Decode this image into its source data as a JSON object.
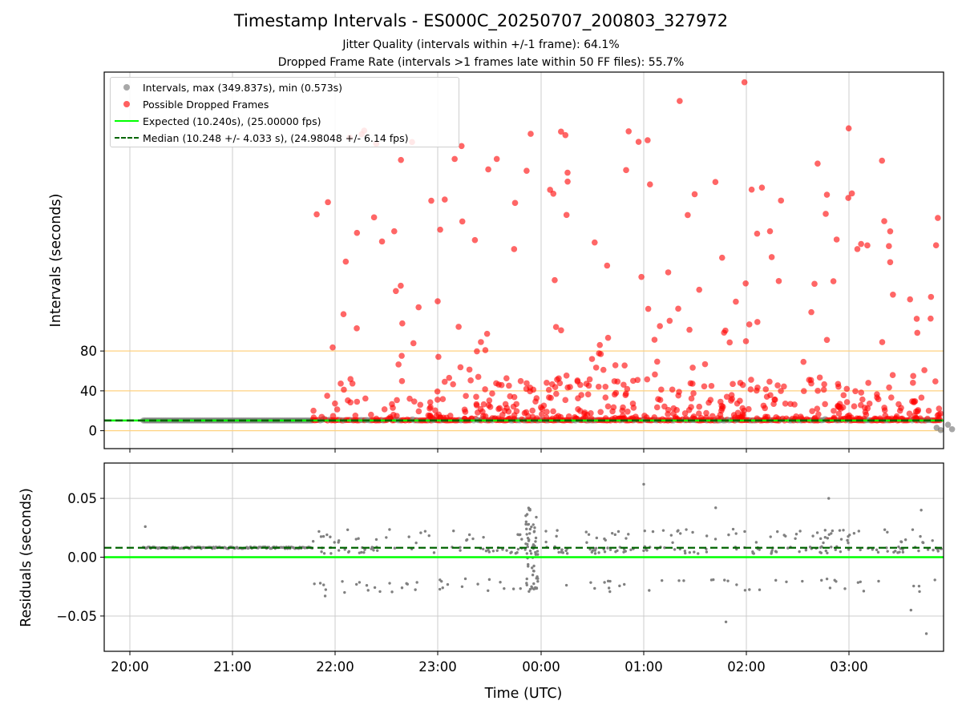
{
  "chart_data": {
    "type": "scatter",
    "title": "Timestamp Intervals - ES000C_20250707_200803_327972",
    "subtitle_1": "Jitter Quality (intervals within +/-1 frame): 64.1%",
    "subtitle_2": "Dropped Frame Rate (intervals >1 frames late within 50 FF files): 55.7%",
    "xlabel": "Time (UTC)",
    "x_tick_labels": [
      "20:00",
      "21:00",
      "22:00",
      "23:00",
      "00:00",
      "01:00",
      "02:00",
      "03:00"
    ],
    "top_panel": {
      "ylabel": "Intervals (seconds)",
      "y_tick_labels": [
        "0",
        "40",
        "80"
      ],
      "ylim": [
        -18,
        360
      ],
      "reference_lines": [
        0,
        40,
        80
      ],
      "reference_line_color": "#ffd280",
      "legend_placement": "top-left",
      "legend": {
        "intervals": "Intervals, max (349.837s), min (0.573s)",
        "dropped": "Possible Dropped Frames",
        "expected": "Expected (10.240s), (25.00000 fps)",
        "median": "Median (10.248 +/- 4.033 s), (24.98048 +/- 6.14 fps)"
      },
      "expected_value": 10.24,
      "median_value": 10.248
    },
    "bottom_panel": {
      "ylabel": "Residuals (seconds)",
      "y_tick_labels": [
        "0.05",
        "0.00",
        "−0.05"
      ],
      "ylim": [
        -0.08,
        0.08
      ],
      "expected_residual": 0.0,
      "median_residual": 0.008
    },
    "colors": {
      "intervals": "#808080",
      "dropped": "#ff0000",
      "expected": "#00ff00",
      "median": "#006400",
      "grid": "#cccccc"
    },
    "grid": true
  }
}
